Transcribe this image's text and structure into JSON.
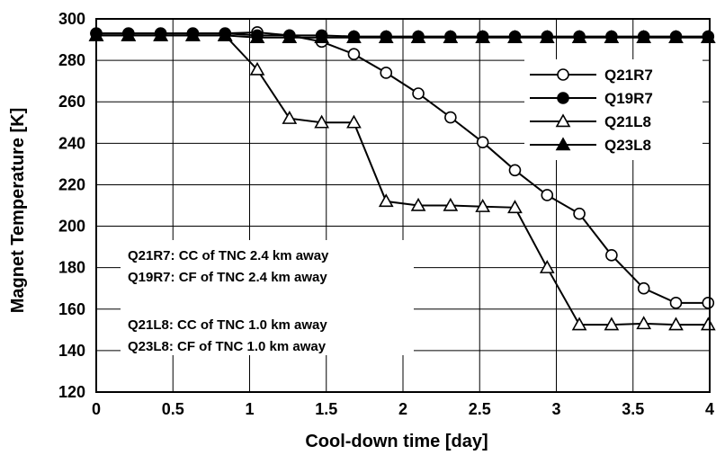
{
  "chart_data": {
    "type": "line",
    "xlabel": "Cool-down time  [day]",
    "ylabel": "Magnet Temperature  [K]",
    "xlim": [
      0,
      4
    ],
    "ylim": [
      120,
      300
    ],
    "xticks": [
      "0",
      "0.5",
      "1",
      "1.5",
      "2",
      "2.5",
      "3",
      "3.5",
      "4"
    ],
    "yticks": [
      "120",
      "140",
      "160",
      "180",
      "200",
      "220",
      "240",
      "260",
      "280",
      "300"
    ],
    "grid": true,
    "legend_position": "top-right",
    "series": [
      {
        "name": "Q21R7",
        "marker": "open-circle",
        "points": [
          [
            0,
            293
          ],
          [
            0.21,
            293
          ],
          [
            0.42,
            293
          ],
          [
            0.63,
            293
          ],
          [
            0.84,
            293
          ],
          [
            1.05,
            293.5
          ],
          [
            1.26,
            292
          ],
          [
            1.47,
            289
          ],
          [
            1.68,
            283
          ],
          [
            1.89,
            274
          ],
          [
            2.1,
            264
          ],
          [
            2.31,
            252.5
          ],
          [
            2.52,
            240.5
          ],
          [
            2.73,
            227
          ],
          [
            2.94,
            215
          ],
          [
            3.15,
            206
          ],
          [
            3.36,
            186
          ],
          [
            3.57,
            170
          ],
          [
            3.78,
            163
          ],
          [
            3.99,
            163
          ]
        ]
      },
      {
        "name": "Q19R7",
        "marker": "filled-circle",
        "points": [
          [
            0,
            293
          ],
          [
            0.21,
            293
          ],
          [
            0.42,
            293
          ],
          [
            0.63,
            293
          ],
          [
            0.84,
            293
          ],
          [
            1.05,
            292
          ],
          [
            1.26,
            292
          ],
          [
            1.47,
            292
          ],
          [
            1.68,
            291.5
          ],
          [
            1.89,
            291.5
          ],
          [
            2.1,
            291.5
          ],
          [
            2.31,
            291.5
          ],
          [
            2.52,
            291.5
          ],
          [
            2.73,
            291.5
          ],
          [
            2.94,
            291.5
          ],
          [
            3.15,
            291.5
          ],
          [
            3.36,
            291.5
          ],
          [
            3.57,
            291.5
          ],
          [
            3.78,
            291.5
          ],
          [
            3.99,
            291.5
          ]
        ]
      },
      {
        "name": "Q21L8",
        "marker": "open-triangle",
        "points": [
          [
            0,
            292
          ],
          [
            0.21,
            292
          ],
          [
            0.42,
            292
          ],
          [
            0.63,
            292
          ],
          [
            0.84,
            292
          ],
          [
            1.05,
            275.5
          ],
          [
            1.26,
            252
          ],
          [
            1.47,
            250
          ],
          [
            1.68,
            250
          ],
          [
            1.89,
            212
          ],
          [
            2.1,
            210
          ],
          [
            2.31,
            210
          ],
          [
            2.52,
            209.5
          ],
          [
            2.73,
            209
          ],
          [
            2.94,
            180
          ],
          [
            3.15,
            152.5
          ],
          [
            3.36,
            152.5
          ],
          [
            3.57,
            153
          ],
          [
            3.78,
            152.5
          ],
          [
            3.99,
            152.5
          ]
        ]
      },
      {
        "name": "Q23L8",
        "marker": "filled-triangle",
        "points": [
          [
            0,
            292
          ],
          [
            0.21,
            292
          ],
          [
            0.42,
            292
          ],
          [
            0.63,
            292
          ],
          [
            0.84,
            292
          ],
          [
            1.05,
            291
          ],
          [
            1.26,
            291
          ],
          [
            1.47,
            291
          ],
          [
            1.68,
            291
          ],
          [
            1.89,
            291
          ],
          [
            2.1,
            291
          ],
          [
            2.31,
            291
          ],
          [
            2.52,
            291
          ],
          [
            2.73,
            291
          ],
          [
            2.94,
            291
          ],
          [
            3.15,
            291
          ],
          [
            3.36,
            291
          ],
          [
            3.57,
            291
          ],
          [
            3.78,
            291
          ],
          [
            3.99,
            291
          ]
        ]
      }
    ],
    "annotations": [
      "Q21R7:  CC of TNC 2.4 km away",
      "Q19R7:  CF of TNC 2.4 km away",
      "Q21L8:  CC of TNC 1.0 km away",
      "Q23L8:  CF of TNC 1.0 km away"
    ]
  }
}
